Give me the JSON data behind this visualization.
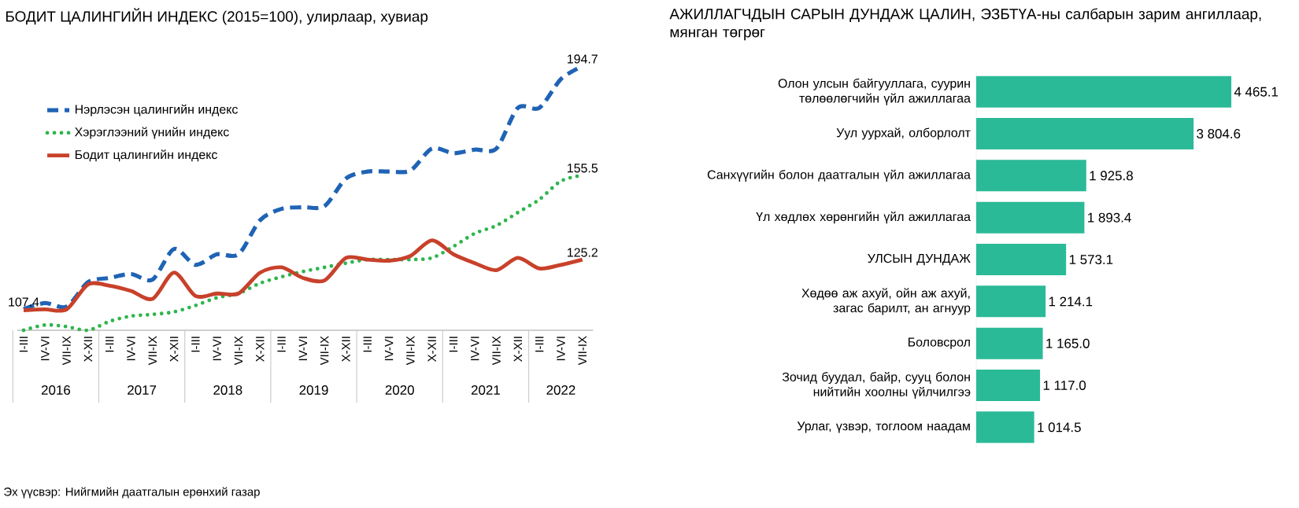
{
  "chart_data": [
    {
      "type": "line",
      "title": "БОДИТ ЦАЛИНГИЙН ИНДЕКС (2015=100), улирлаар, хувиар",
      "categories": [
        "I-III",
        "IV-VI",
        "VII-IX",
        "X-XII",
        "I-III",
        "IV-VI",
        "VII-IX",
        "X-XII",
        "I-III",
        "IV-VI",
        "VII-IX",
        "X-XII",
        "I-III",
        "IV-VI",
        "VII-IX",
        "X-XII",
        "I-III",
        "IV-VI",
        "VII-IX",
        "X-XII",
        "I-III",
        "IV-VI",
        "VII-IX",
        "X-XII",
        "I-III",
        "IV-VI",
        "VII-IX"
      ],
      "series": [
        {
          "name": "Нэрлэсэн цалингийн индекс",
          "color": "#1f63b5",
          "line_style": "dashed",
          "values": [
            107.4,
            109.6,
            108.3,
            117.1,
            118.6,
            120.0,
            118.0,
            129.0,
            123.3,
            127.1,
            127.1,
            139.3,
            143.4,
            144.0,
            144.4,
            154.3,
            156.8,
            156.8,
            157.2,
            165.1,
            163.4,
            164.7,
            165.1,
            179.7,
            179.7,
            190.0,
            194.7
          ],
          "value_labels": [
            "107.4",
            null,
            null,
            null,
            null,
            null,
            null,
            null,
            null,
            null,
            null,
            null,
            null,
            null,
            null,
            null,
            null,
            null,
            null,
            null,
            null,
            null,
            null,
            null,
            null,
            null,
            "194.7"
          ]
        },
        {
          "name": "Хэрэглээний үнийн индекс",
          "color": "#2fb54e",
          "line_style": "dotted",
          "values": [
            99.8,
            101.7,
            101.1,
            99.8,
            103.0,
            104.9,
            105.5,
            106.4,
            108.7,
            111.5,
            113.0,
            116.7,
            119.0,
            120.9,
            122.4,
            123.9,
            125.2,
            125.2,
            125.2,
            125.8,
            129.9,
            134.6,
            137.4,
            142.1,
            146.8,
            153.4,
            155.5
          ],
          "value_labels": [
            null,
            null,
            null,
            null,
            null,
            null,
            null,
            null,
            null,
            null,
            null,
            null,
            null,
            null,
            null,
            null,
            null,
            null,
            null,
            null,
            null,
            null,
            null,
            null,
            null,
            null,
            "155.5"
          ]
        },
        {
          "name": "Бодит цалингийн индекс",
          "color": "#c8412b",
          "line_style": "solid",
          "values": [
            107.0,
            107.3,
            107.3,
            116.3,
            115.8,
            113.9,
            111.1,
            120.5,
            112.1,
            113.0,
            113.0,
            120.5,
            122.4,
            118.6,
            117.7,
            125.8,
            125.2,
            124.8,
            126.5,
            132.1,
            127.1,
            123.9,
            121.4,
            125.8,
            122.0,
            123.3,
            125.2
          ],
          "value_labels": [
            null,
            null,
            null,
            null,
            null,
            null,
            null,
            null,
            null,
            null,
            null,
            null,
            null,
            null,
            null,
            null,
            null,
            null,
            null,
            null,
            null,
            null,
            null,
            null,
            null,
            null,
            "125.2"
          ]
        }
      ],
      "legend": "top left",
      "tick_labels": "x",
      "annotations": [
        "2016",
        "2017",
        "2018",
        "2019",
        "2020",
        "2021",
        "2022",
        "Эх үүсвэр: Нийгмийн даатгалын ерөнхий газар"
      ]
    },
    {
      "type": "bar",
      "orientation": "horizontal",
      "title": "АЖИЛЛАГЧДЫН САРЫН ДУНДАЖ ЦАЛИН, ЭЗБТҮА-ны салбарын зарим ангиллаар, мянган төгрөг",
      "categories": [
        "Олон улсын байгууллага, суурин төлөөлөгчийн үйл ажиллагаа",
        "Уул уурхай, олборлолт",
        "Санхүүгийн болон даатгалын үйл ажиллагаа",
        "Үл хөдлөх хөрөнгийн үйл ажиллагаа",
        "УЛСЫН ДУНДАЖ",
        "Хөдөө аж ахуй, ойн аж ахуй, загас барилт, ан агнуур",
        "Боловсрол",
        "Зочид буудал, байр, сууц болон нийтийн хоолны үйлчилгээ",
        "Урлаг, үзвэр, тоглоом наадам"
      ],
      "values": [
        4465.1,
        3804.6,
        1925.8,
        1893.4,
        1573.1,
        1214.1,
        1165.0,
        1117.0,
        1014.5
      ],
      "value_labels": [
        "4 465.1",
        "3 804.6",
        "1 925.8",
        "1 893.4",
        "1 573.1",
        "1 214.1",
        "1 165.0",
        "1 117.0",
        "1 014.5"
      ],
      "color": "#2bba98",
      "tick_labels": "y"
    }
  ]
}
